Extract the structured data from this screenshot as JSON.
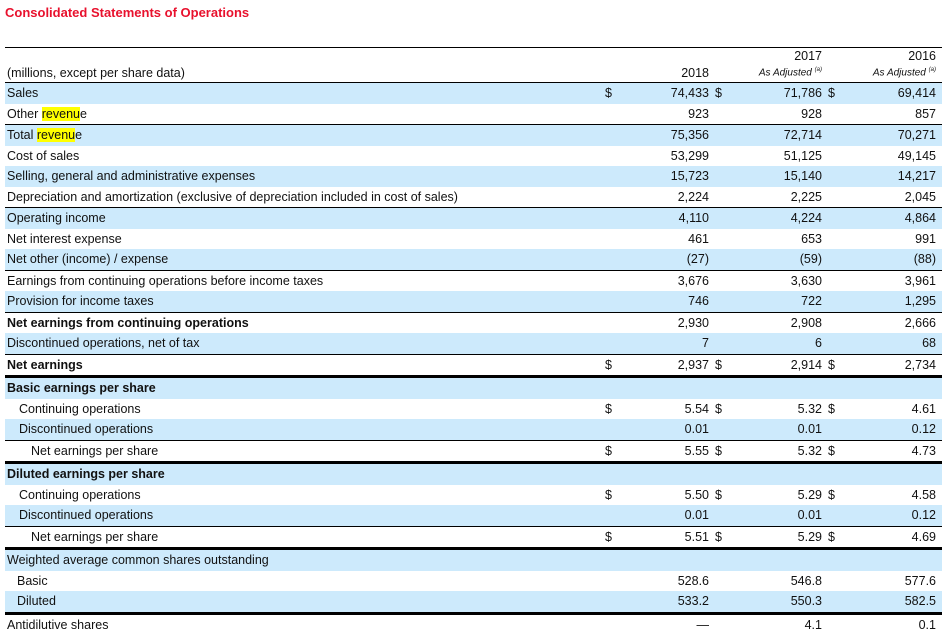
{
  "title": "Consolidated Statements of Operations",
  "header": {
    "label": "(millions, except per share data)",
    "columns": [
      {
        "year": "2018",
        "note": "",
        "sup": ""
      },
      {
        "year": "2017",
        "note": "As Adjusted",
        "sup": "(a)"
      },
      {
        "year": "2016",
        "note": "As Adjusted",
        "sup": "(a)"
      }
    ]
  },
  "colors": {
    "title": "#e8112d",
    "stripe": "#cdeafc",
    "highlight": "#ffff00"
  },
  "rows": [
    {
      "pre": "Sales",
      "values": [
        "74,433",
        "71,786",
        "69,414"
      ],
      "dollar": true
    },
    {
      "pre": "Other ",
      "hl": "revenu",
      "post": "e",
      "values": [
        "923",
        "928",
        "857"
      ]
    },
    {
      "pre": "Total ",
      "hl": "revenu",
      "post": "e",
      "values": [
        "75,356",
        "72,714",
        "70,271"
      ],
      "border": "thin"
    },
    {
      "pre": "Cost of sales",
      "values": [
        "53,299",
        "51,125",
        "49,145"
      ]
    },
    {
      "pre": "Selling, general and administrative expenses",
      "values": [
        "15,723",
        "15,140",
        "14,217"
      ]
    },
    {
      "pre": "Depreciation and amortization (exclusive of depreciation included in cost of sales)",
      "values": [
        "2,224",
        "2,225",
        "2,045"
      ]
    },
    {
      "pre": "Operating income",
      "values": [
        "4,110",
        "4,224",
        "4,864"
      ],
      "border": "thin"
    },
    {
      "pre": "Net interest expense",
      "values": [
        "461",
        "653",
        "991"
      ]
    },
    {
      "pre": "Net other (income) / expense",
      "values": [
        "(27)",
        "(59)",
        "(88)"
      ]
    },
    {
      "pre": "Earnings from continuing operations before income taxes",
      "values": [
        "3,676",
        "3,630",
        "3,961"
      ],
      "border": "thin"
    },
    {
      "pre": "Provision for income taxes",
      "values": [
        "746",
        "722",
        "1,295"
      ]
    },
    {
      "pre": "Net earnings from continuing operations",
      "values": [
        "2,930",
        "2,908",
        "2,666"
      ],
      "border": "thin",
      "bold": true
    },
    {
      "pre": "Discontinued operations, net of tax",
      "values": [
        "7",
        "6",
        "68"
      ]
    },
    {
      "pre": "Net earnings",
      "values": [
        "2,937",
        "2,914",
        "2,734"
      ],
      "border": "thin",
      "bold": true,
      "dollar": true
    },
    {
      "pre": "Basic earnings per share",
      "values": [
        "",
        "",
        ""
      ],
      "border": "thick",
      "bold": true
    },
    {
      "pre": "Continuing operations",
      "values": [
        "5.54",
        "5.32",
        "4.61"
      ],
      "indent": 1,
      "dollar": true
    },
    {
      "pre": "Discontinued operations",
      "values": [
        "0.01",
        "0.01",
        "0.12"
      ],
      "indent": 1
    },
    {
      "pre": "Net earnings per share",
      "values": [
        "5.55",
        "5.32",
        "4.73"
      ],
      "indent": 2,
      "border": "thin",
      "dollar": true
    },
    {
      "pre": "Diluted earnings per share",
      "values": [
        "",
        "",
        ""
      ],
      "border": "thick",
      "bold": true
    },
    {
      "pre": "Continuing operations",
      "values": [
        "5.50",
        "5.29",
        "4.58"
      ],
      "indent": 1,
      "dollar": true
    },
    {
      "pre": "Discontinued operations",
      "values": [
        "0.01",
        "0.01",
        "0.12"
      ],
      "indent": 1
    },
    {
      "pre": "Net earnings per share",
      "values": [
        "5.51",
        "5.29",
        "4.69"
      ],
      "indent": 2,
      "border": "thin",
      "dollar": true
    },
    {
      "pre": "Weighted average common shares outstanding",
      "values": [
        "",
        "",
        ""
      ],
      "border": "thick"
    },
    {
      "pre": "Basic",
      "values": [
        "528.6",
        "546.8",
        "577.6"
      ],
      "indent": 3
    },
    {
      "pre": "Diluted",
      "values": [
        "533.2",
        "550.3",
        "582.5"
      ],
      "indent": 3
    },
    {
      "pre": "Antidilutive shares",
      "values": [
        "—",
        "4.1",
        "0.1"
      ],
      "border": "thick"
    }
  ],
  "dollar_sign": "$"
}
